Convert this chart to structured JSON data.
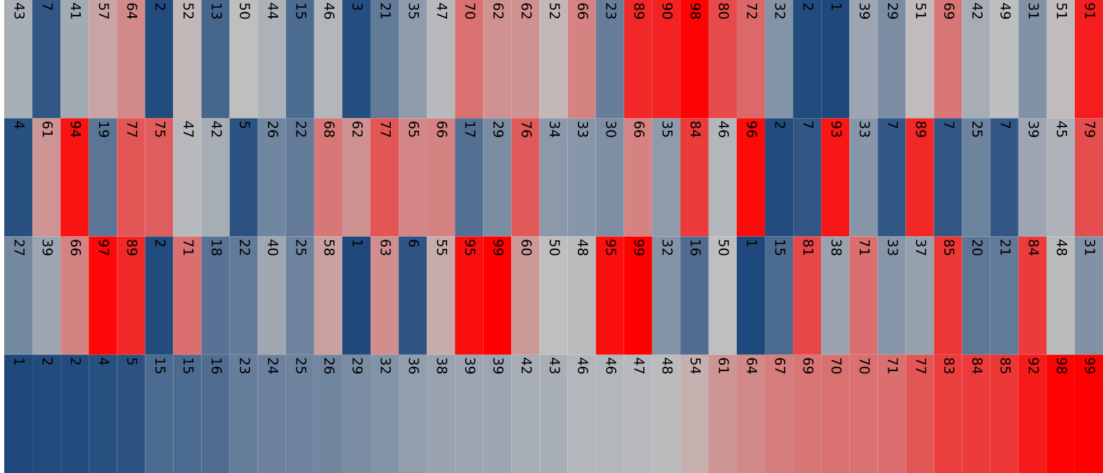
{
  "chart_data": {
    "type": "heatmap",
    "categories": [
      null,
      null,
      null,
      null,
      null,
      null,
      null,
      null,
      null,
      null,
      null,
      null,
      null,
      null,
      null,
      null,
      null,
      null,
      null,
      null,
      null,
      null,
      null,
      null,
      null,
      null,
      null,
      null,
      null,
      null,
      null,
      null,
      null,
      null,
      null,
      null,
      null,
      null,
      null
    ],
    "y_categories": [
      null,
      null,
      null,
      null
    ],
    "colors": [
      "#1f497d",
      "#c0c0c0",
      "#ff0000"
    ],
    "data_labels": true,
    "cells": [
      [
        43,
        7,
        41,
        57,
        64,
        2,
        52,
        13,
        50,
        44,
        15,
        46,
        3,
        21,
        35,
        47,
        70,
        62,
        62,
        52,
        66,
        23,
        89,
        90,
        98,
        80,
        72,
        32,
        2,
        1,
        39,
        29,
        51,
        69,
        42,
        49,
        31,
        51,
        91
      ],
      [
        4,
        61,
        94,
        19,
        77,
        75,
        47,
        42,
        5,
        26,
        22,
        68,
        62,
        77,
        65,
        66,
        17,
        29,
        76,
        34,
        33,
        30,
        66,
        35,
        84,
        46,
        96,
        2,
        7,
        93,
        33,
        7,
        89,
        7,
        25,
        7,
        39,
        45,
        79
      ],
      [
        27,
        39,
        66,
        97,
        89,
        2,
        71,
        18,
        22,
        40,
        25,
        58,
        1,
        63,
        6,
        55,
        95,
        99,
        60,
        50,
        48,
        95,
        99,
        32,
        16,
        50,
        1,
        15,
        81,
        38,
        71,
        33,
        37,
        85,
        20,
        21,
        84,
        48,
        31
      ],
      [
        1,
        2,
        2,
        4,
        5,
        15,
        15,
        16,
        23,
        24,
        25,
        26,
        29,
        32,
        36,
        38,
        39,
        39,
        42,
        43,
        46,
        46,
        47,
        48,
        54,
        61,
        64,
        67,
        69,
        70,
        70,
        71,
        77,
        83,
        84,
        85,
        92,
        98,
        99
      ]
    ]
  }
}
